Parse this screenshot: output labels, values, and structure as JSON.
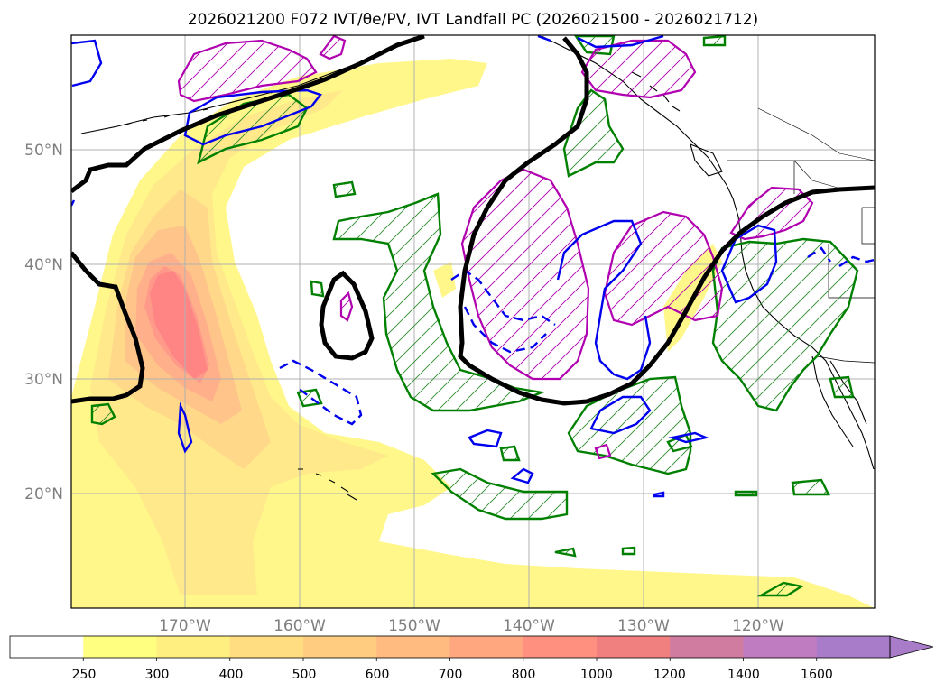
{
  "figure": {
    "title": "2026021200 F072 IVT/θe/PV, IVT Landfall PC (2026021500 - 2026021712)"
  },
  "map": {
    "lon_range": [
      -180,
      -110
    ],
    "lat_range": [
      10,
      60
    ],
    "longitude_ticks": [
      {
        "value": -170,
        "label": "170°W"
      },
      {
        "value": -160,
        "label": "160°W"
      },
      {
        "value": -150,
        "label": "150°W"
      },
      {
        "value": -140,
        "label": "140°W"
      },
      {
        "value": -130,
        "label": "130°W"
      },
      {
        "value": -120,
        "label": "120°W"
      }
    ],
    "latitude_ticks": [
      {
        "value": 20,
        "label": "20°N"
      },
      {
        "value": 30,
        "label": "30°N"
      },
      {
        "value": 40,
        "label": "40°N"
      },
      {
        "value": 50,
        "label": "50°N"
      }
    ],
    "grid": true,
    "layers": [
      {
        "name": "IVT",
        "style": "filled contours",
        "colors": [
          "#ffff80",
          "#ffe680",
          "#ffcc80",
          "#ffb080",
          "#ff9a80",
          "#ff8080"
        ]
      },
      {
        "name": "thick contour",
        "color": "#000000"
      },
      {
        "name": "hatched contours",
        "color": "#008000"
      },
      {
        "name": "hatched contours",
        "color": "#b000b0"
      },
      {
        "name": "contours",
        "color": "#0000ee"
      }
    ]
  },
  "colorbar": {
    "levels": [
      "250",
      "300",
      "400",
      "500",
      "600",
      "700",
      "800",
      "1000",
      "1200",
      "1400",
      "1600"
    ],
    "colors": [
      "#ffffff",
      "#ffff80",
      "#ffee80",
      "#ffdd80",
      "#ffcc80",
      "#ffbb80",
      "#ffa880",
      "#ff9080",
      "#f08080",
      "#d07ca0",
      "#c07cc0",
      "#a87cc8"
    ],
    "extend": "max"
  }
}
